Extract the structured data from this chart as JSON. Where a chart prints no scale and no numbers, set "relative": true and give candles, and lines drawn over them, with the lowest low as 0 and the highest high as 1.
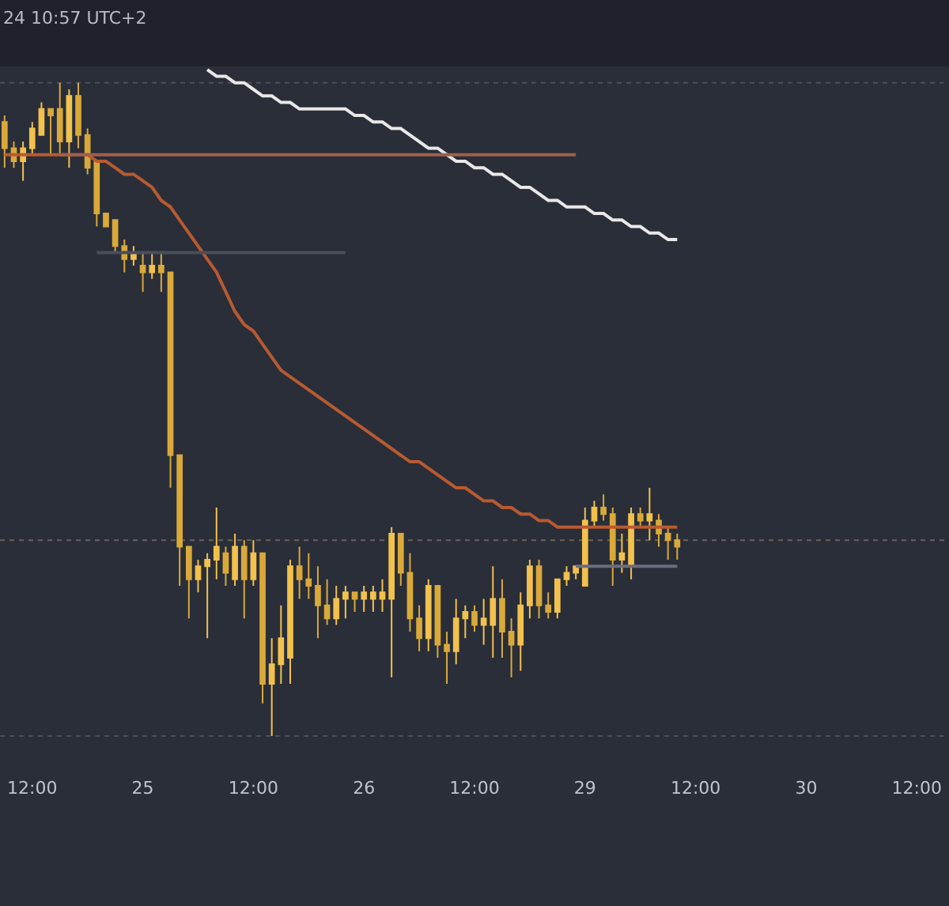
{
  "chart_data": {
    "type": "candlestick",
    "relative": true,
    "annotations": [
      "24 10:57 UTC+2"
    ],
    "categories": [
      null,
      null,
      null,
      "12:00",
      null,
      null,
      null,
      null,
      null,
      null,
      null,
      null,
      null,
      null,
      null,
      "25",
      null,
      null,
      null,
      null,
      null,
      null,
      null,
      null,
      null,
      null,
      null,
      "12:00",
      null,
      null,
      null,
      null,
      null,
      null,
      null,
      null,
      null,
      null,
      null,
      "26",
      null,
      null,
      null,
      null,
      null,
      null,
      null,
      null,
      null,
      null,
      null,
      "12:00",
      null,
      null,
      null,
      null,
      null,
      null,
      null,
      null,
      null,
      null,
      null,
      "29",
      null,
      null,
      null,
      null,
      null,
      null,
      null,
      null,
      null,
      null,
      null,
      "12:00",
      null,
      null,
      null,
      null,
      null,
      null,
      null,
      null,
      null,
      null,
      null,
      "30",
      null,
      null,
      null,
      null,
      null,
      null,
      null,
      null,
      null,
      null,
      null,
      "12:00",
      null,
      null,
      null
    ],
    "ohlc": [
      [
        0.94,
        0.95,
        0.87,
        0.9
      ],
      [
        0.9,
        0.91,
        0.87,
        0.88
      ],
      [
        0.88,
        0.91,
        0.85,
        0.9
      ],
      [
        0.9,
        0.94,
        0.89,
        0.93
      ],
      [
        0.92,
        0.97,
        0.92,
        0.96
      ],
      [
        0.96,
        0.96,
        0.89,
        0.95
      ],
      [
        0.96,
        1.0,
        0.89,
        0.91
      ],
      [
        0.91,
        0.99,
        0.87,
        0.98
      ],
      [
        0.98,
        1.0,
        0.9,
        0.92
      ],
      [
        0.92,
        0.93,
        0.86,
        0.87
      ],
      [
        0.88,
        0.88,
        0.78,
        0.8
      ],
      [
        0.8,
        0.8,
        0.78,
        0.78
      ],
      [
        0.79,
        0.79,
        0.74,
        0.75
      ],
      [
        0.75,
        0.76,
        0.71,
        0.73
      ],
      [
        0.73,
        0.75,
        0.72,
        0.74
      ],
      [
        0.72,
        0.74,
        0.68,
        0.71
      ],
      [
        0.71,
        0.74,
        0.7,
        0.72
      ],
      [
        0.72,
        0.74,
        0.68,
        0.71
      ],
      [
        0.71,
        0.71,
        0.38,
        0.43
      ],
      [
        0.43,
        0.43,
        0.23,
        0.29
      ],
      [
        0.29,
        0.29,
        0.18,
        0.24
      ],
      [
        0.24,
        0.27,
        0.22,
        0.26
      ],
      [
        0.26,
        0.28,
        0.15,
        0.27
      ],
      [
        0.27,
        0.35,
        0.24,
        0.29
      ],
      [
        0.28,
        0.29,
        0.23,
        0.25
      ],
      [
        0.24,
        0.31,
        0.23,
        0.29
      ],
      [
        0.29,
        0.3,
        0.18,
        0.24
      ],
      [
        0.24,
        0.3,
        0.23,
        0.28
      ],
      [
        0.28,
        0.28,
        0.05,
        0.08
      ],
      [
        0.08,
        0.15,
        0.0,
        0.11
      ],
      [
        0.11,
        0.2,
        0.08,
        0.15
      ],
      [
        0.12,
        0.27,
        0.08,
        0.26
      ],
      [
        0.26,
        0.29,
        0.21,
        0.24
      ],
      [
        0.24,
        0.28,
        0.21,
        0.23
      ],
      [
        0.23,
        0.26,
        0.15,
        0.2
      ],
      [
        0.2,
        0.24,
        0.17,
        0.18
      ],
      [
        0.18,
        0.23,
        0.17,
        0.21
      ],
      [
        0.21,
        0.23,
        0.18,
        0.22
      ],
      [
        0.22,
        0.22,
        0.19,
        0.21
      ],
      [
        0.21,
        0.23,
        0.19,
        0.22
      ],
      [
        0.21,
        0.23,
        0.19,
        0.22
      ],
      [
        0.21,
        0.24,
        0.19,
        0.22
      ],
      [
        0.21,
        0.32,
        0.09,
        0.31
      ],
      [
        0.31,
        0.31,
        0.23,
        0.25
      ],
      [
        0.25,
        0.28,
        0.16,
        0.18
      ],
      [
        0.18,
        0.2,
        0.13,
        0.15
      ],
      [
        0.15,
        0.24,
        0.13,
        0.23
      ],
      [
        0.23,
        0.23,
        0.12,
        0.14
      ],
      [
        0.14,
        0.16,
        0.08,
        0.13
      ],
      [
        0.13,
        0.21,
        0.11,
        0.18
      ],
      [
        0.18,
        0.2,
        0.15,
        0.19
      ],
      [
        0.19,
        0.2,
        0.16,
        0.17
      ],
      [
        0.17,
        0.21,
        0.14,
        0.18
      ],
      [
        0.17,
        0.26,
        0.12,
        0.21
      ],
      [
        0.21,
        0.24,
        0.12,
        0.16
      ],
      [
        0.16,
        0.18,
        0.09,
        0.14
      ],
      [
        0.14,
        0.22,
        0.1,
        0.2
      ],
      [
        0.2,
        0.27,
        0.18,
        0.26
      ],
      [
        0.26,
        0.27,
        0.18,
        0.2
      ],
      [
        0.2,
        0.22,
        0.18,
        0.19
      ],
      [
        0.19,
        0.24,
        0.18,
        0.24
      ],
      [
        0.24,
        0.26,
        0.23,
        0.25
      ],
      [
        0.25,
        0.26,
        0.24,
        0.26
      ],
      [
        0.23,
        0.35,
        0.23,
        0.33
      ],
      [
        0.33,
        0.36,
        0.32,
        0.35
      ],
      [
        0.35,
        0.37,
        0.33,
        0.34
      ],
      [
        0.34,
        0.35,
        0.23,
        0.27
      ],
      [
        0.27,
        0.31,
        0.25,
        0.28
      ],
      [
        0.26,
        0.35,
        0.24,
        0.34
      ],
      [
        0.34,
        0.35,
        0.32,
        0.33
      ],
      [
        0.33,
        0.38,
        0.3,
        0.34
      ],
      [
        0.33,
        0.34,
        0.29,
        0.31
      ],
      [
        0.31,
        0.32,
        0.27,
        0.3
      ],
      [
        0.3,
        0.31,
        0.27,
        0.29
      ],
      null,
      null,
      null,
      null,
      null,
      null,
      null,
      null,
      null,
      null,
      null,
      null,
      null,
      null,
      null,
      null,
      null,
      null,
      null,
      null,
      null,
      null,
      null,
      null,
      null,
      null,
      null,
      null,
      null
    ],
    "colors": [
      "#d9a93a",
      "#d9a93a",
      "#f2c14e",
      "#f2c14e",
      "#f2c14e",
      "#d9a93a",
      "#d9a93a",
      "#f2c14e",
      "#d9a93a",
      "#d9a93a",
      "#d9a93a",
      "#d9a93a",
      "#d9a93a",
      "#d9a93a",
      "#f2c14e",
      "#d9a93a",
      "#f2c14e",
      "#d9a93a",
      "#d9a93a",
      "#d9a93a",
      "#d9a93a",
      "#f2c14e",
      "#f2c14e",
      "#f2c14e",
      "#d9a93a",
      "#f2c14e",
      "#d9a93a",
      "#f2c14e",
      "#d9a93a",
      "#f2c14e",
      "#f2c14e",
      "#f2c14e",
      "#d9a93a",
      "#d9a93a",
      "#d9a93a",
      "#d9a93a",
      "#f2c14e",
      "#f2c14e",
      "#d9a93a",
      "#f2c14e",
      "#f2c14e",
      "#f2c14e",
      "#f2c14e",
      "#d9a93a",
      "#d9a93a",
      "#d9a93a",
      "#f2c14e",
      "#d9a93a",
      "#d9a93a",
      "#f2c14e",
      "#f2c14e",
      "#d9a93a",
      "#f2c14e",
      "#f2c14e",
      "#d9a93a",
      "#d9a93a",
      "#f2c14e",
      "#f2c14e",
      "#d9a93a",
      "#d9a93a",
      "#f2c14e",
      "#f2c14e",
      "#f2c14e",
      "#f2c14e",
      "#f2c14e",
      "#d9a93a",
      "#d9a93a",
      "#f2c14e",
      "#f2c14e",
      "#d9a93a",
      "#f2c14e",
      "#d9a93a",
      "#d9a93a",
      "#d9a93a",
      null,
      null,
      null,
      null,
      null,
      null,
      null,
      null,
      null,
      null,
      null,
      null,
      null,
      null,
      null,
      null,
      null,
      null,
      null,
      null,
      null,
      null,
      null,
      null,
      null,
      null,
      null,
      null,
      null
    ],
    "series": [
      {
        "type": "line",
        "color": "#b85a30",
        "values": [
          0.89,
          0.89,
          0.89,
          0.89,
          0.89,
          0.89,
          0.89,
          0.89,
          0.89,
          0.89,
          0.88,
          0.88,
          0.87,
          0.86,
          0.86,
          0.85,
          0.84,
          0.82,
          0.81,
          0.79,
          0.77,
          0.75,
          0.73,
          0.71,
          0.68,
          0.65,
          0.63,
          0.62,
          0.6,
          0.58,
          0.56,
          0.55,
          0.54,
          0.53,
          0.52,
          0.51,
          0.5,
          0.49,
          0.48,
          0.47,
          0.46,
          0.45,
          0.44,
          0.43,
          0.42,
          0.42,
          0.41,
          0.4,
          0.39,
          0.38,
          0.38,
          0.37,
          0.36,
          0.36,
          0.35,
          0.35,
          0.34,
          0.34,
          0.33,
          0.33,
          0.32,
          0.32,
          0.32,
          0.32,
          0.32,
          0.32,
          0.32,
          0.32,
          0.32,
          0.32,
          0.32,
          0.32,
          0.32,
          0.32,
          null,
          null,
          null,
          null,
          null,
          null,
          null,
          null,
          null,
          null,
          null,
          null,
          null,
          null,
          null,
          null,
          null,
          null,
          null,
          null,
          null,
          null,
          null,
          null,
          null,
          null,
          null,
          null,
          null
        ]
      },
      {
        "type": "line",
        "color": "#e8e8e8",
        "values": [
          null,
          null,
          null,
          null,
          null,
          null,
          null,
          null,
          null,
          null,
          null,
          null,
          null,
          null,
          null,
          null,
          null,
          null,
          null,
          null,
          null,
          null,
          1.02,
          1.01,
          1.01,
          1.0,
          1.0,
          0.99,
          0.98,
          0.98,
          0.97,
          0.97,
          0.96,
          0.96,
          0.96,
          0.96,
          0.96,
          0.96,
          0.95,
          0.95,
          0.94,
          0.94,
          0.93,
          0.93,
          0.92,
          0.91,
          0.9,
          0.9,
          0.89,
          0.88,
          0.88,
          0.87,
          0.87,
          0.86,
          0.86,
          0.85,
          0.84,
          0.84,
          0.83,
          0.82,
          0.82,
          0.81,
          0.81,
          0.81,
          0.8,
          0.8,
          0.79,
          0.79,
          0.78,
          0.78,
          0.77,
          0.77,
          0.76,
          0.76,
          null,
          null,
          null,
          null,
          null,
          null,
          null,
          null,
          null,
          null,
          null,
          null,
          null,
          null,
          null,
          null,
          null,
          null,
          null,
          null,
          null,
          null,
          null,
          null,
          null,
          null,
          null,
          null,
          null
        ]
      },
      {
        "type": "line",
        "color": "#a0604a",
        "values": [
          null,
          null,
          null,
          null,
          null,
          null,
          0.89,
          0.89,
          0.89,
          0.89,
          0.89,
          0.89,
          0.89,
          0.89,
          0.89,
          0.89,
          0.89,
          0.89,
          0.89,
          0.89,
          0.89,
          0.89,
          0.89,
          0.89,
          0.89,
          0.89,
          0.89,
          0.89,
          0.89,
          0.89,
          0.89,
          0.89,
          0.89,
          0.89,
          0.89,
          0.89,
          0.89,
          0.89,
          0.89,
          0.89,
          0.89,
          0.89,
          0.89,
          0.89,
          0.89,
          0.89,
          0.89,
          0.89,
          0.89,
          0.89,
          0.89,
          0.89,
          0.89,
          0.89,
          0.89,
          0.89,
          0.89,
          0.89,
          0.89,
          0.89,
          0.89,
          0.89,
          0.89,
          null,
          null,
          null,
          null,
          null,
          null,
          null,
          null,
          null,
          null,
          null,
          null,
          null,
          null,
          null,
          null,
          null,
          null,
          null,
          null,
          null,
          null,
          null,
          null,
          null,
          null,
          null,
          null,
          null,
          null,
          null,
          null,
          null,
          null,
          null,
          null,
          null,
          null,
          null,
          null
        ]
      },
      {
        "type": "line",
        "color": "#4a4e5c",
        "values": [
          null,
          null,
          null,
          null,
          null,
          null,
          null,
          null,
          null,
          null,
          0.74,
          0.74,
          0.74,
          0.74,
          0.74,
          0.74,
          0.74,
          0.74,
          0.74,
          0.74,
          0.74,
          0.74,
          0.74,
          0.74,
          0.74,
          0.74,
          0.74,
          0.74,
          0.74,
          0.74,
          0.74,
          0.74,
          0.74,
          0.74,
          0.74,
          0.74,
          0.74,
          0.74,
          null,
          null,
          null,
          null,
          null,
          null,
          null,
          null,
          null,
          null,
          null,
          null,
          null,
          null,
          null,
          null,
          null,
          null,
          null,
          null,
          null,
          null,
          null,
          null,
          null,
          null,
          null,
          null,
          null,
          null,
          null,
          null,
          null,
          null,
          null,
          null,
          null,
          null,
          null,
          null,
          null,
          null,
          null,
          null,
          null,
          null,
          null,
          null,
          null,
          null,
          null,
          null,
          null,
          null,
          null,
          null,
          null,
          null,
          null,
          null,
          null,
          null,
          null,
          null,
          null
        ]
      },
      {
        "type": "line",
        "color": "#6a6e7c",
        "values": [
          null,
          null,
          null,
          null,
          null,
          null,
          null,
          null,
          null,
          null,
          null,
          null,
          null,
          null,
          null,
          null,
          null,
          null,
          null,
          null,
          null,
          null,
          null,
          null,
          null,
          null,
          null,
          null,
          null,
          null,
          null,
          null,
          null,
          null,
          null,
          null,
          null,
          null,
          null,
          null,
          null,
          null,
          null,
          null,
          null,
          null,
          null,
          null,
          null,
          null,
          null,
          null,
          null,
          null,
          null,
          null,
          null,
          null,
          null,
          null,
          null,
          null,
          0.26,
          0.26,
          0.26,
          0.26,
          0.26,
          0.26,
          0.26,
          0.26,
          0.26,
          0.26,
          0.26,
          0.26,
          null,
          null,
          null,
          null,
          null,
          null,
          null,
          null,
          null,
          null,
          null,
          null,
          null,
          null,
          null,
          null,
          null,
          null,
          null,
          null,
          null,
          null,
          null,
          null,
          null,
          null,
          null,
          null,
          null
        ]
      }
    ],
    "ref_lines": [
      {
        "axis": "y",
        "value": 1.0,
        "color": "#4a4e5c",
        "line_style": "dotted"
      },
      {
        "axis": "y",
        "value": 0.3,
        "color": "#6a6452",
        "line_style": "dotted"
      },
      {
        "axis": "y",
        "value": 0.0,
        "color": "#4a4e5c",
        "line_style": "dotted"
      }
    ],
    "tick_labels": "x",
    "grid": false,
    "marker": "none",
    "line_style": "solid"
  }
}
